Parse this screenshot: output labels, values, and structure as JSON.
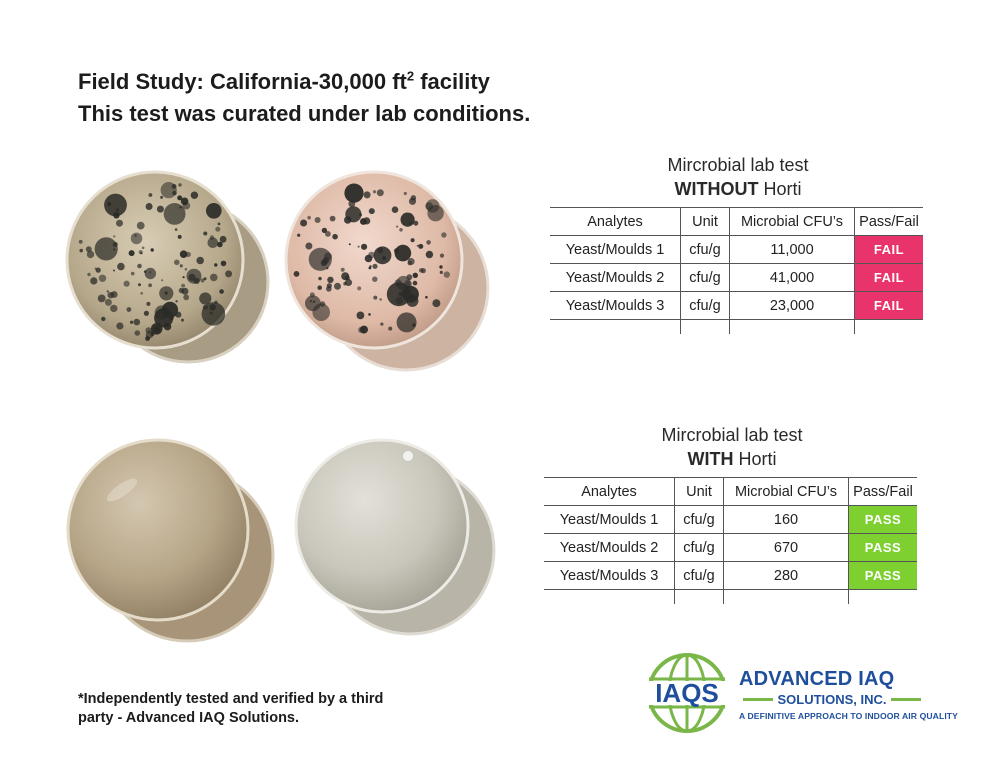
{
  "title": {
    "line1_prefix": "Field Study: California-30,000 ft",
    "line1_sup": "2",
    "line1_suffix": " facility",
    "line2": "This test was curated under lab conditions."
  },
  "colors": {
    "fail": "#e8336b",
    "pass": "#7ed031",
    "brand_blue": "#1f4f9c",
    "brand_green": "#7ab648"
  },
  "tables": [
    {
      "caption_line1": "Mircrobial lab test",
      "caption_bold": "WITHOUT",
      "caption_rest": " Horti",
      "headers": [
        "Analytes",
        "Unit",
        "Microbial CFU’s",
        "Pass/Fail"
      ],
      "rows": [
        {
          "analyte": "Yeast/Moulds 1",
          "unit": "cfu/g",
          "cfu": "11,000",
          "result": "FAIL"
        },
        {
          "analyte": "Yeast/Moulds 2",
          "unit": "cfu/g",
          "cfu": "41,000",
          "result": "FAIL"
        },
        {
          "analyte": "Yeast/Moulds 3",
          "unit": "cfu/g",
          "cfu": "23,000",
          "result": "FAIL"
        }
      ]
    },
    {
      "caption_line1": "Mircrobial lab test",
      "caption_bold": "WITH",
      "caption_rest": " Horti",
      "headers": [
        "Analytes",
        "Unit",
        "Microbial CFU’s",
        "Pass/Fail"
      ],
      "rows": [
        {
          "analyte": "Yeast/Moulds 1",
          "unit": "cfu/g",
          "cfu": "160",
          "result": "PASS"
        },
        {
          "analyte": "Yeast/Moulds 2",
          "unit": "cfu/g",
          "cfu": "670",
          "result": "PASS"
        },
        {
          "analyte": "Yeast/Moulds 3",
          "unit": "cfu/g",
          "cfu": "280",
          "result": "PASS"
        }
      ]
    }
  ],
  "footnote": {
    "line1": "*Independently tested and verified by a third",
    "line2": "party - Advanced IAQ Solutions."
  },
  "logo": {
    "mark": "IAQS",
    "name": "ADVANCED IAQ",
    "subname": "SOLUTIONS, INC.",
    "tagline": "A DEFINITIVE APPROACH TO INDOOR AIR QUALITY"
  }
}
